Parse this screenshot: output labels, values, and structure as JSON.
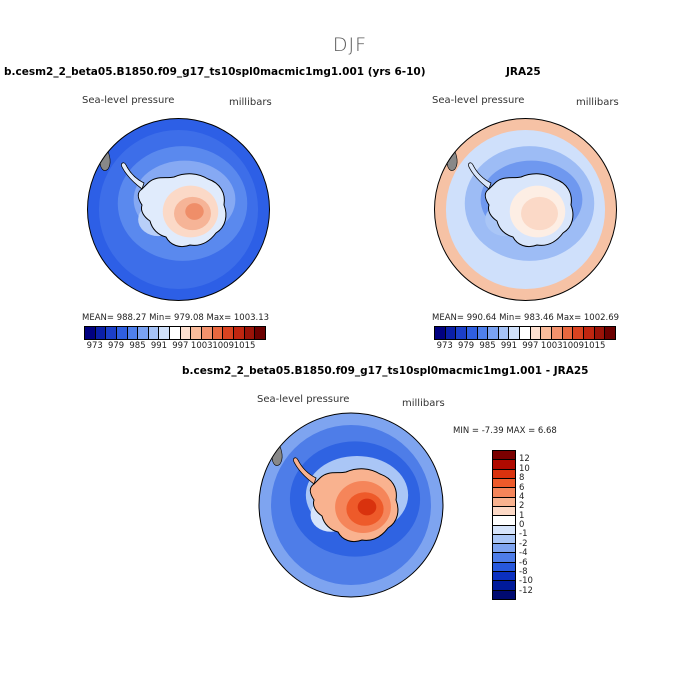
{
  "season": "DJF",
  "panels": {
    "model": {
      "title": "b.cesm2_2_beta05.B1850.f09_g17_ts10spl0macmic1mg1.001 (yrs 6-10)",
      "variable": "Sea-level pressure",
      "units": "millibars",
      "stats": "MEAN= 988.27   Min= 979.08   Max= 1003.13"
    },
    "obs": {
      "title": "JRA25",
      "variable": "Sea-level pressure",
      "units": "millibars",
      "stats": "MEAN= 990.64   Min= 983.46   Max= 1002.69"
    },
    "diff": {
      "title": "b.cesm2_2_beta05.B1850.f09_g17_ts10spl0macmic1mg1.001 - JRA25",
      "variable": "Sea-level pressure",
      "units": "millibars",
      "minmax": "MIN =   -7.39  MAX =    6.68"
    }
  },
  "colorbar_abs": {
    "ticks": [
      "973",
      "979",
      "985",
      "991",
      "997",
      "1003",
      "1009",
      "1015"
    ],
    "colors": [
      "#000080",
      "#0a1fa8",
      "#1b3fc9",
      "#2f5fe0",
      "#4f80ec",
      "#7aa2f2",
      "#a6c3f7",
      "#d2e2fb",
      "#ffffff",
      "#fde0d0",
      "#f9bb9b",
      "#f2926d",
      "#e9683f",
      "#d94320",
      "#c02610",
      "#9a1308",
      "#6b0000"
    ]
  },
  "colorbar_diff": {
    "ticks": [
      "12",
      "10",
      "8",
      "6",
      "4",
      "2",
      "1",
      "0",
      "-1",
      "-2",
      "-4",
      "-6",
      "-8",
      "-10",
      "-12"
    ],
    "colors": [
      "#7a0000",
      "#b00a00",
      "#d9320e",
      "#ee5a2a",
      "#f5855a",
      "#f9b28f",
      "#fdd9c6",
      "#ffffff",
      "#d6e4fb",
      "#aac6f6",
      "#7ea4f0",
      "#4e7de8",
      "#2758dc",
      "#0b30c0",
      "#001a9a",
      "#000a70"
    ]
  },
  "map_layers": {
    "model": {
      "ocean": [
        "#2d5fe6",
        "#3d6ee9",
        "#5a89ee",
        "#86a9f3",
        "#b8cff8"
      ],
      "ice": [
        "#e0ebfc",
        "#fbd9c7",
        "#f6b497",
        "#ef8e69"
      ]
    },
    "obs": {
      "ocean": [
        "#f6c2a5",
        "#cfe0fb",
        "#9dbcf5",
        "#6f98ef",
        "#aac6f6"
      ],
      "ice": [
        "#d9e6fb",
        "#fdeee4",
        "#fbd9c7"
      ]
    },
    "diff": {
      "ocean": [
        "#7ea4f0",
        "#4e7de8",
        "#2f63e2",
        "#aac6f6",
        "#d6e4fb"
      ],
      "ice": [
        "#f9b28f",
        "#f5855a",
        "#ee5a2a",
        "#d9320e"
      ]
    }
  }
}
